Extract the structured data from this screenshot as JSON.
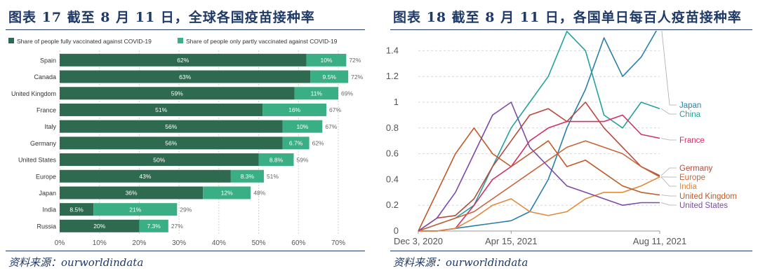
{
  "left": {
    "title": "图表 17   截至 8 月 11 日，全球各国疫苗接种率",
    "source": "资料来源：ourworldindata",
    "chart_data": {
      "type": "bar",
      "stacked": true,
      "orientation": "horizontal",
      "categories": [
        "Spain",
        "Canada",
        "United Kingdom",
        "France",
        "Italy",
        "Germany",
        "United States",
        "Europe",
        "Japan",
        "India",
        "Russia"
      ],
      "series": [
        {
          "name": "Share of people fully vaccinated against COVID-19",
          "color": "#2d6a4f",
          "values": [
            62,
            63,
            59,
            51,
            56,
            56,
            50,
            43,
            36,
            8.5,
            20
          ],
          "labels": [
            "62%",
            "63%",
            "59%",
            "51%",
            "56%",
            "56%",
            "50%",
            "43%",
            "36%",
            "8.5%",
            "20%"
          ]
        },
        {
          "name": "Share of people only partly vaccinated against COVID-19",
          "color": "#3aaf85",
          "values": [
            10,
            9.5,
            11,
            16,
            10,
            6.7,
            8.8,
            8.3,
            12,
            21,
            7.3
          ],
          "labels": [
            "10%",
            "9.5%",
            "11%",
            "16%",
            "10%",
            "6.7%",
            "8.8%",
            "8.3%",
            "12%",
            "21%",
            "7.3%"
          ]
        }
      ],
      "totals": [
        "72%",
        "72%",
        "69%",
        "67%",
        "67%",
        "62%",
        "59%",
        "51%",
        "48%",
        "29%",
        "27%"
      ],
      "xticks": [
        "0%",
        "10%",
        "20%",
        "30%",
        "40%",
        "50%",
        "60%",
        "70%"
      ],
      "xlim": [
        0,
        72
      ],
      "legend_position": "top-left",
      "grid": "vertical-dashed"
    }
  },
  "right": {
    "title": "图表 18   截至 8 月 11 日，各国单日每百人疫苗接种率",
    "source": "资料来源：ourworldindata",
    "chart_data": {
      "type": "line",
      "x": [
        "2020-12-03",
        "2021-01-01",
        "2021-02-01",
        "2021-03-01",
        "2021-04-01",
        "2021-04-15",
        "2021-05-01",
        "2021-05-15",
        "2021-06-01",
        "2021-06-15",
        "2021-07-01",
        "2021-07-15",
        "2021-08-01",
        "2021-08-11"
      ],
      "xticks": [
        "Dec 3, 2020",
        "Apr 15, 2021",
        "Aug 11, 2021"
      ],
      "yticks": [
        "0",
        "0.2",
        "0.4",
        "0.6",
        "0.8",
        "1",
        "1.2",
        "1.4"
      ],
      "ylim": [
        0,
        1.5
      ],
      "grid": "horizontal-dashed",
      "series": [
        {
          "name": "Japan",
          "color": "#2a7fa8",
          "values": [
            0,
            0,
            0.02,
            0.04,
            0.06,
            0.08,
            0.15,
            0.4,
            0.8,
            1.1,
            1.5,
            1.2,
            1.35,
            1.6
          ]
        },
        {
          "name": "China",
          "color": "#23a39b",
          "values": [
            0,
            0.05,
            0.1,
            0.2,
            0.5,
            0.8,
            1.0,
            1.2,
            1.55,
            1.4,
            0.9,
            0.8,
            1.0,
            0.95
          ]
        },
        {
          "name": "France",
          "color": "#d0306a",
          "values": [
            0,
            0,
            0.02,
            0.2,
            0.4,
            0.5,
            0.7,
            0.8,
            0.85,
            0.85,
            0.85,
            0.9,
            0.75,
            0.72
          ]
        },
        {
          "name": "Germany",
          "color": "#b54a3c",
          "values": [
            0,
            0.1,
            0.12,
            0.25,
            0.5,
            0.7,
            0.9,
            0.95,
            0.85,
            1.0,
            0.8,
            0.65,
            0.5,
            0.43
          ]
        },
        {
          "name": "Europe",
          "color": "#c8643c",
          "values": [
            0,
            0.05,
            0.1,
            0.15,
            0.25,
            0.35,
            0.45,
            0.55,
            0.65,
            0.7,
            0.65,
            0.6,
            0.5,
            0.42
          ]
        },
        {
          "name": "India",
          "color": "#e08a3a",
          "values": [
            0,
            0,
            0.02,
            0.1,
            0.2,
            0.25,
            0.15,
            0.12,
            0.15,
            0.25,
            0.3,
            0.3,
            0.35,
            0.42
          ]
        },
        {
          "name": "United Kingdom",
          "color": "#c05a28",
          "values": [
            0,
            0.3,
            0.6,
            0.8,
            0.6,
            0.5,
            0.6,
            0.7,
            0.5,
            0.55,
            0.45,
            0.35,
            0.3,
            0.28
          ]
        },
        {
          "name": "United States",
          "color": "#7d4aa6",
          "values": [
            0,
            0.1,
            0.3,
            0.6,
            0.9,
            1.0,
            0.65,
            0.5,
            0.35,
            0.3,
            0.25,
            0.2,
            0.22,
            0.22
          ]
        }
      ],
      "legend_position": "right-end-labels"
    }
  }
}
